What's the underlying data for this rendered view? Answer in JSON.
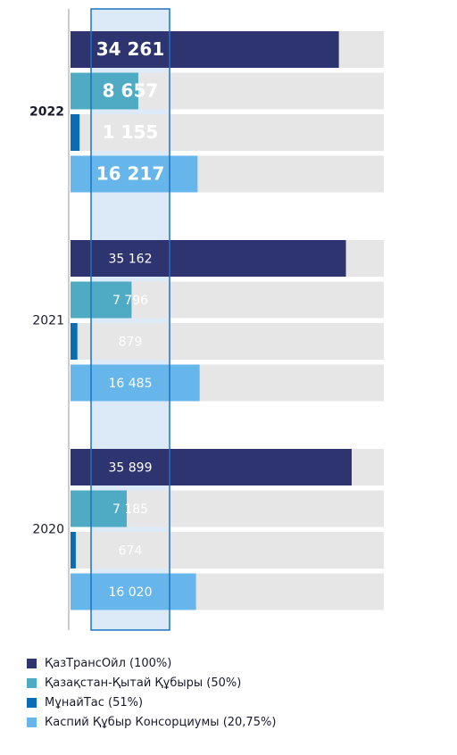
{
  "chart_data": {
    "type": "bar",
    "orientation": "horizontal",
    "categories": [
      "2022",
      "2021",
      "2020"
    ],
    "series": [
      {
        "name": "ҚазТрансОйл (100%)",
        "color": "#2d3470",
        "values": [
          34261,
          35162,
          35899
        ],
        "labels": [
          "34 261",
          "35 162",
          "35 899"
        ]
      },
      {
        "name": "Қазақстан-Қытай Құбыры (50%)",
        "color": "#4fabc4",
        "values": [
          8657,
          7796,
          7185
        ],
        "labels": [
          "8 657",
          "7 796",
          "7 185"
        ]
      },
      {
        "name": "МұнайТас (51%)",
        "color": "#0b6cb6",
        "values": [
          1155,
          879,
          674
        ],
        "labels": [
          "1 155",
          "879",
          "674"
        ]
      },
      {
        "name": "Каспий Құбыр Консорциумы (20,75%)",
        "color": "#66b6ec",
        "values": [
          16217,
          16485,
          16020
        ],
        "labels": [
          "16 217",
          "16 485",
          "16 020"
        ]
      }
    ],
    "xlim": [
      0,
      40000
    ],
    "highlight_category": "2022",
    "grid": false,
    "legend_position": "bottom-left"
  }
}
